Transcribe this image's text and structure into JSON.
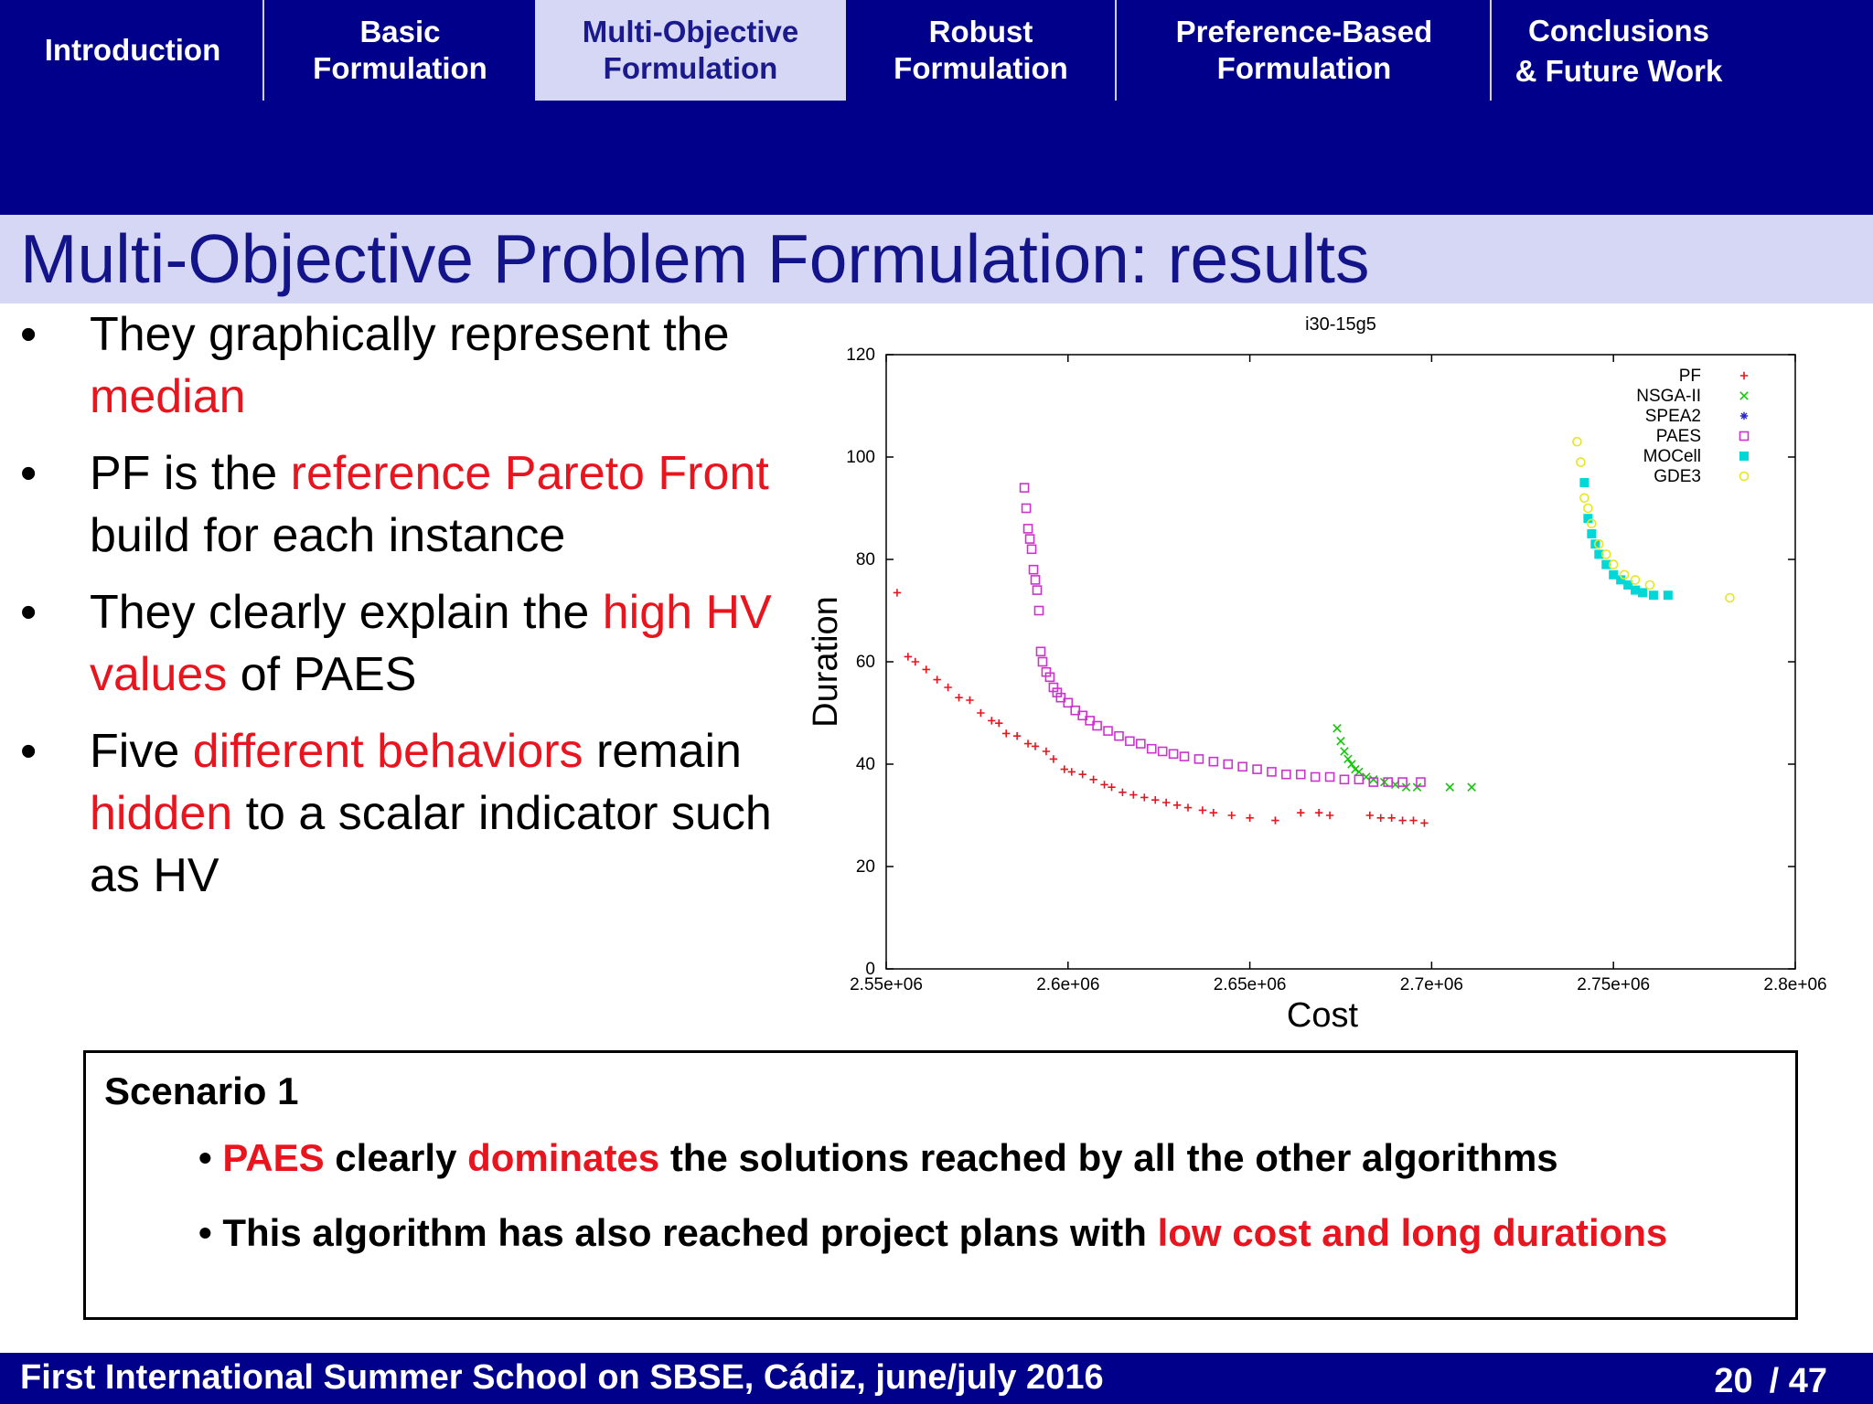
{
  "nav": {
    "tabs": [
      {
        "line1": "Introduction",
        "line2": ""
      },
      {
        "line1": "Basic",
        "line2": "Formulation"
      },
      {
        "line1": "Multi-Objective",
        "line2": "Formulation"
      },
      {
        "line1": "Robust",
        "line2": "Formulation"
      },
      {
        "line1": "Preference-Based",
        "line2": "Formulation"
      },
      {
        "line1": "Conclusions",
        "line2": "& Future Work"
      }
    ],
    "active_index": 2
  },
  "title": "Multi-Objective Problem Formulation: results",
  "bullets": [
    [
      {
        "t": "They graphically represent the "
      },
      {
        "t": "median",
        "red": true
      }
    ],
    [
      {
        "t": "PF is the "
      },
      {
        "t": "reference Pareto Front",
        "red": true
      },
      {
        "t": " build for each instance"
      }
    ],
    [
      {
        "t": "They clearly explain the "
      },
      {
        "t": "high HV values",
        "red": true
      },
      {
        "t": " of PAES"
      }
    ],
    [
      {
        "t": "Five "
      },
      {
        "t": "different behaviors",
        "red": true
      },
      {
        "t": " remain "
      },
      {
        "t": "hidden",
        "red": true
      },
      {
        "t": " to a scalar indicator such as HV"
      }
    ]
  ],
  "bullet_symbol": "•",
  "scenario": {
    "title": "Scenario 1",
    "items": [
      [
        {
          "t": "• "
        },
        {
          "t": "PAES",
          "red": true
        },
        {
          "t": " clearly "
        },
        {
          "t": "dominates",
          "red": true
        },
        {
          "t": " the solutions reached by all the other algorithms"
        }
      ],
      [
        {
          "t": "• This algorithm has also reached project plans with "
        },
        {
          "t": "low cost and long durations",
          "red": true
        }
      ]
    ]
  },
  "footer": {
    "text": "First International Summer School on SBSE, Cádiz, june/july 2016",
    "page": "20",
    "total": "/ 47"
  },
  "colors": {
    "nav_bg": "#00008a",
    "title_band": "#d6d6f5",
    "title_text": "#14148a",
    "highlight_red": "#e8141e"
  },
  "chart_data": {
    "type": "scatter",
    "title": "i30-15g5",
    "xlabel": "Cost",
    "ylabel": "Duration",
    "xlim": [
      2550000,
      2800000
    ],
    "ylim": [
      0,
      120
    ],
    "xticks": [
      2550000,
      2600000,
      2650000,
      2700000,
      2750000,
      2800000
    ],
    "xtick_labels": [
      "2.55e+06",
      "2.6e+06",
      "2.65e+06",
      "2.7e+06",
      "2.75e+06",
      "2.8e+06"
    ],
    "yticks": [
      0,
      20,
      40,
      60,
      80,
      100,
      120
    ],
    "ytick_labels": [
      "0",
      "20",
      "40",
      "60",
      "80",
      "100",
      "120"
    ],
    "legend_position": "top-right",
    "series": [
      {
        "name": "PF",
        "marker": "plus",
        "color": "#e8141e",
        "points": [
          [
            2553000,
            73.5
          ],
          [
            2556000,
            61
          ],
          [
            2558000,
            60
          ],
          [
            2561000,
            58.5
          ],
          [
            2564000,
            56.5
          ],
          [
            2567000,
            55
          ],
          [
            2570000,
            53
          ],
          [
            2573000,
            52.5
          ],
          [
            2576000,
            50
          ],
          [
            2579000,
            48.5
          ],
          [
            2581000,
            48
          ],
          [
            2583000,
            46
          ],
          [
            2586000,
            45.5
          ],
          [
            2589000,
            44
          ],
          [
            2591000,
            43.5
          ],
          [
            2594000,
            42.5
          ],
          [
            2596000,
            41
          ],
          [
            2599000,
            39
          ],
          [
            2601000,
            38.5
          ],
          [
            2604000,
            38
          ],
          [
            2607000,
            37
          ],
          [
            2610000,
            36
          ],
          [
            2612000,
            35.5
          ],
          [
            2615000,
            34.5
          ],
          [
            2618000,
            34
          ],
          [
            2621000,
            33.5
          ],
          [
            2624000,
            33
          ],
          [
            2627000,
            32.5
          ],
          [
            2630000,
            32
          ],
          [
            2633000,
            31.5
          ],
          [
            2637000,
            31
          ],
          [
            2640000,
            30.5
          ],
          [
            2645000,
            30
          ],
          [
            2650000,
            29.5
          ],
          [
            2657000,
            29
          ],
          [
            2664000,
            30.5
          ],
          [
            2669000,
            30.5
          ],
          [
            2672000,
            30
          ],
          [
            2683000,
            30
          ],
          [
            2686000,
            29.5
          ],
          [
            2689000,
            29.5
          ],
          [
            2692000,
            29
          ],
          [
            2695000,
            29
          ],
          [
            2698000,
            28.5
          ]
        ]
      },
      {
        "name": "NSGA-II",
        "marker": "cross",
        "color": "#16c60c",
        "points": [
          [
            2674000,
            47
          ],
          [
            2675000,
            44.5
          ],
          [
            2676000,
            42.5
          ],
          [
            2677000,
            41
          ],
          [
            2678000,
            40
          ],
          [
            2679000,
            39
          ],
          [
            2680000,
            38.5
          ],
          [
            2682000,
            37.5
          ],
          [
            2684000,
            37
          ],
          [
            2687000,
            36.5
          ],
          [
            2690000,
            36
          ],
          [
            2693000,
            35.5
          ],
          [
            2696000,
            35.5
          ],
          [
            2705000,
            35.5
          ],
          [
            2711000,
            35.5
          ]
        ]
      },
      {
        "name": "SPEA2",
        "marker": "star",
        "color": "#2b2bbf",
        "points": []
      },
      {
        "name": "PAES",
        "marker": "open-square",
        "color": "#cc33cc",
        "points": [
          [
            2588000,
            94
          ],
          [
            2588500,
            90
          ],
          [
            2589000,
            86
          ],
          [
            2589500,
            84
          ],
          [
            2590000,
            82
          ],
          [
            2590500,
            78
          ],
          [
            2591000,
            76
          ],
          [
            2591500,
            74
          ],
          [
            2592000,
            70
          ],
          [
            2592500,
            62
          ],
          [
            2593000,
            60
          ],
          [
            2594000,
            58
          ],
          [
            2595000,
            57
          ],
          [
            2596000,
            55
          ],
          [
            2597000,
            54
          ],
          [
            2598000,
            53
          ],
          [
            2600000,
            52
          ],
          [
            2602000,
            50.5
          ],
          [
            2604000,
            49.5
          ],
          [
            2606000,
            48.5
          ],
          [
            2608000,
            47.5
          ],
          [
            2611000,
            46.5
          ],
          [
            2614000,
            45.5
          ],
          [
            2617000,
            44.5
          ],
          [
            2620000,
            44
          ],
          [
            2623000,
            43
          ],
          [
            2626000,
            42.5
          ],
          [
            2629000,
            42
          ],
          [
            2632000,
            41.5
          ],
          [
            2636000,
            41
          ],
          [
            2640000,
            40.5
          ],
          [
            2644000,
            40
          ],
          [
            2648000,
            39.5
          ],
          [
            2652000,
            39
          ],
          [
            2656000,
            38.5
          ],
          [
            2660000,
            38
          ],
          [
            2664000,
            38
          ],
          [
            2668000,
            37.5
          ],
          [
            2672000,
            37.5
          ],
          [
            2676000,
            37
          ],
          [
            2680000,
            37
          ],
          [
            2684000,
            36.5
          ],
          [
            2688000,
            36.5
          ],
          [
            2692000,
            36.5
          ],
          [
            2697000,
            36.5
          ]
        ]
      },
      {
        "name": "MOCell",
        "marker": "filled-square",
        "color": "#00d8d8",
        "points": [
          [
            2742000,
            95
          ],
          [
            2743000,
            88
          ],
          [
            2744000,
            85
          ],
          [
            2745000,
            83
          ],
          [
            2746000,
            81
          ],
          [
            2748000,
            79
          ],
          [
            2750000,
            77
          ],
          [
            2752000,
            76
          ],
          [
            2754000,
            75
          ],
          [
            2756000,
            74
          ],
          [
            2758000,
            73.5
          ],
          [
            2761000,
            73
          ],
          [
            2765000,
            73
          ]
        ]
      },
      {
        "name": "GDE3",
        "marker": "open-circle",
        "color": "#e6e620",
        "points": [
          [
            2740000,
            103
          ],
          [
            2741000,
            99
          ],
          [
            2742000,
            92
          ],
          [
            2743000,
            90
          ],
          [
            2744000,
            87
          ],
          [
            2746000,
            83
          ],
          [
            2748000,
            81
          ],
          [
            2750000,
            79
          ],
          [
            2753000,
            77
          ],
          [
            2756000,
            76
          ],
          [
            2760000,
            75
          ],
          [
            2782000,
            72.5
          ]
        ]
      }
    ]
  }
}
